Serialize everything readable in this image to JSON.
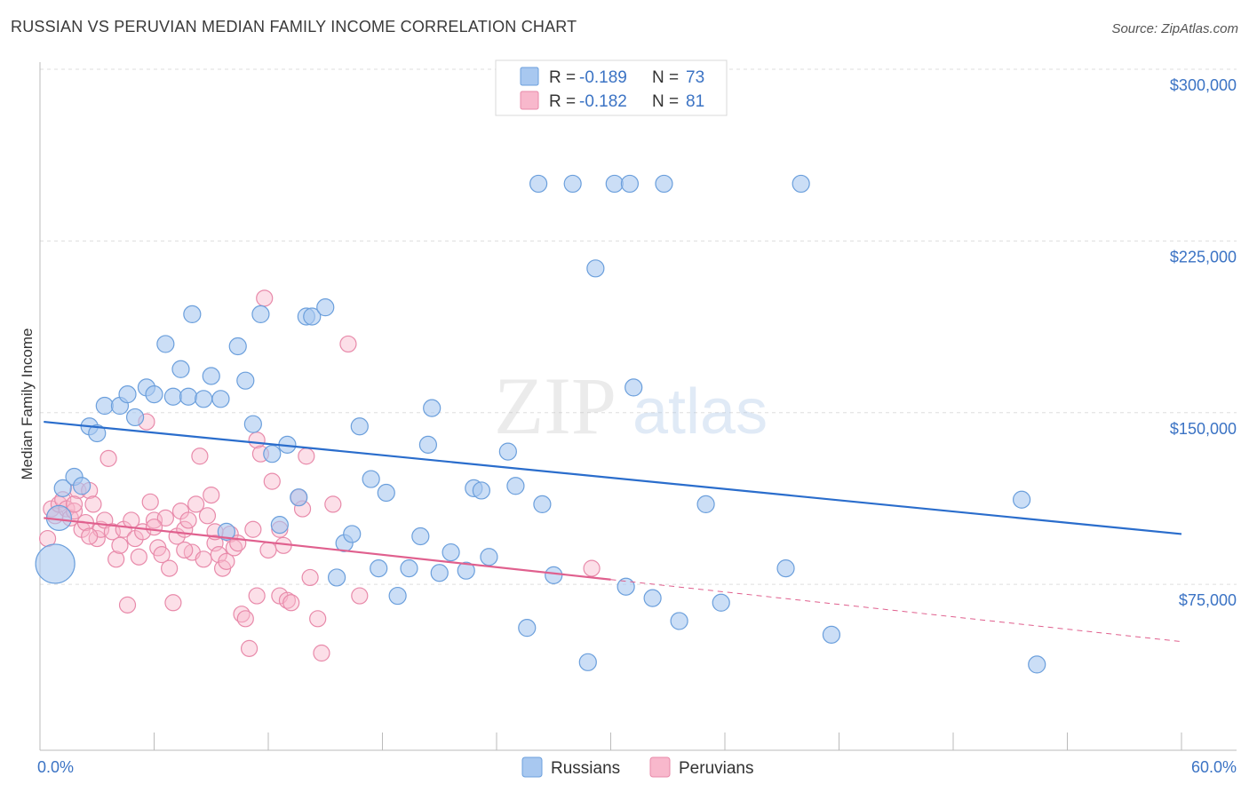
{
  "title": "RUSSIAN VS PERUVIAN MEDIAN FAMILY INCOME CORRELATION CHART",
  "source": "Source: ZipAtlas.com",
  "watermark": {
    "zip": "ZIP",
    "atlas": "atlas"
  },
  "colors": {
    "russians_fill": "#a8c8f0",
    "russians_stroke": "#6b9fdc",
    "russians_line": "#2a6dcc",
    "peruvians_fill": "#f8b8cc",
    "peruvians_stroke": "#e88aaa",
    "peruvians_line": "#e0608e",
    "accent_text": "#3b73c4",
    "grid": "#dddddd"
  },
  "legend": {
    "rows": [
      {
        "r_label": "R = ",
        "r_value": "-0.189",
        "n_label": "N = ",
        "n_value": "73"
      },
      {
        "r_label": "R = ",
        "r_value": "-0.182",
        "n_label": "N = ",
        "n_value": "81"
      }
    ]
  },
  "chart_data": {
    "type": "scatter",
    "xlabel": "",
    "ylabel": "Median Family Income",
    "xlim": [
      0,
      60
    ],
    "ylim": [
      10000,
      315000
    ],
    "x_tick_labels": [
      "0.0%",
      "60.0%"
    ],
    "y_ticks": [
      75000,
      150000,
      225000,
      300000
    ],
    "y_tick_labels": [
      "$75,000",
      "$150,000",
      "$225,000",
      "$300,000"
    ],
    "grid": true,
    "legend_position": "top-center",
    "series": [
      {
        "name": "Russians",
        "trend": {
          "x0": 0.2,
          "y0": 146000,
          "x1": 60,
          "y1": 97000,
          "dashed_after": null
        },
        "points": [
          [
            1.2,
            117000
          ],
          [
            1.8,
            122000
          ],
          [
            2.2,
            118000
          ],
          [
            2.6,
            144000
          ],
          [
            3.0,
            141000
          ],
          [
            3.4,
            153000
          ],
          [
            4.2,
            153000
          ],
          [
            4.6,
            158000
          ],
          [
            5.0,
            148000
          ],
          [
            5.6,
            161000
          ],
          [
            6.0,
            158000
          ],
          [
            6.6,
            180000
          ],
          [
            7.0,
            157000
          ],
          [
            7.4,
            169000
          ],
          [
            7.8,
            157000
          ],
          [
            8.0,
            193000
          ],
          [
            8.6,
            156000
          ],
          [
            9.0,
            166000
          ],
          [
            9.5,
            156000
          ],
          [
            9.8,
            98000
          ],
          [
            10.4,
            179000
          ],
          [
            10.8,
            164000
          ],
          [
            11.2,
            145000
          ],
          [
            11.6,
            193000
          ],
          [
            12.2,
            132000
          ],
          [
            12.6,
            101000
          ],
          [
            13.0,
            136000
          ],
          [
            13.6,
            113000
          ],
          [
            14.0,
            192000
          ],
          [
            14.3,
            192000
          ],
          [
            15.0,
            196000
          ],
          [
            15.6,
            78000
          ],
          [
            16.0,
            93000
          ],
          [
            16.4,
            97000
          ],
          [
            16.8,
            144000
          ],
          [
            17.4,
            121000
          ],
          [
            17.8,
            82000
          ],
          [
            18.2,
            115000
          ],
          [
            18.8,
            70000
          ],
          [
            19.4,
            82000
          ],
          [
            20.0,
            96000
          ],
          [
            20.4,
            136000
          ],
          [
            20.6,
            152000
          ],
          [
            21.0,
            80000
          ],
          [
            21.6,
            89000
          ],
          [
            22.4,
            81000
          ],
          [
            22.8,
            117000
          ],
          [
            23.2,
            116000
          ],
          [
            23.6,
            87000
          ],
          [
            24.6,
            133000
          ],
          [
            25.0,
            118000
          ],
          [
            25.6,
            56000
          ],
          [
            26.4,
            110000
          ],
          [
            27.0,
            79000
          ],
          [
            26.2,
            250000
          ],
          [
            28.0,
            250000
          ],
          [
            28.8,
            41000
          ],
          [
            29.2,
            213000
          ],
          [
            30.2,
            250000
          ],
          [
            31.0,
            250000
          ],
          [
            31.2,
            161000
          ],
          [
            30.8,
            74000
          ],
          [
            32.2,
            69000
          ],
          [
            32.8,
            250000
          ],
          [
            33.6,
            59000
          ],
          [
            35.0,
            110000
          ],
          [
            35.8,
            67000
          ],
          [
            39.2,
            82000
          ],
          [
            40.0,
            250000
          ],
          [
            41.6,
            53000
          ],
          [
            51.6,
            112000
          ],
          [
            52.4,
            40000
          ],
          [
            0.8,
            84000
          ]
        ],
        "radii": {
          "0.8": 24,
          "default": 10
        }
      },
      {
        "name": "Peruvians",
        "trend": {
          "x0": 0.2,
          "y0": 104000,
          "x1": 60,
          "y1": 50000,
          "solid_until": 30
        },
        "points": [
          [
            0.4,
            95000
          ],
          [
            0.6,
            108000
          ],
          [
            0.8,
            105000
          ],
          [
            1.0,
            110000
          ],
          [
            1.2,
            112000
          ],
          [
            1.4,
            108000
          ],
          [
            1.6,
            104000
          ],
          [
            1.8,
            107000
          ],
          [
            2.0,
            116000
          ],
          [
            2.2,
            99000
          ],
          [
            2.4,
            102000
          ],
          [
            2.6,
            116000
          ],
          [
            2.8,
            110000
          ],
          [
            3.0,
            95000
          ],
          [
            3.2,
            99000
          ],
          [
            3.4,
            103000
          ],
          [
            3.6,
            130000
          ],
          [
            3.8,
            98000
          ],
          [
            4.0,
            86000
          ],
          [
            4.2,
            92000
          ],
          [
            4.4,
            99000
          ],
          [
            4.6,
            66000
          ],
          [
            4.8,
            103000
          ],
          [
            5.0,
            95000
          ],
          [
            5.2,
            87000
          ],
          [
            5.4,
            98000
          ],
          [
            5.6,
            146000
          ],
          [
            5.8,
            111000
          ],
          [
            6.0,
            103000
          ],
          [
            6.2,
            91000
          ],
          [
            6.4,
            88000
          ],
          [
            6.6,
            104000
          ],
          [
            6.8,
            82000
          ],
          [
            7.0,
            67000
          ],
          [
            7.2,
            96000
          ],
          [
            7.4,
            107000
          ],
          [
            7.6,
            99000
          ],
          [
            7.8,
            103000
          ],
          [
            8.0,
            89000
          ],
          [
            8.2,
            110000
          ],
          [
            8.4,
            131000
          ],
          [
            8.6,
            86000
          ],
          [
            8.8,
            105000
          ],
          [
            9.0,
            114000
          ],
          [
            9.2,
            93000
          ],
          [
            9.4,
            88000
          ],
          [
            9.6,
            82000
          ],
          [
            9.8,
            85000
          ],
          [
            10.0,
            97000
          ],
          [
            10.2,
            91000
          ],
          [
            10.4,
            93000
          ],
          [
            10.6,
            62000
          ],
          [
            10.8,
            60000
          ],
          [
            11.0,
            47000
          ],
          [
            11.2,
            99000
          ],
          [
            11.4,
            138000
          ],
          [
            11.6,
            132000
          ],
          [
            11.8,
            200000
          ],
          [
            12.0,
            90000
          ],
          [
            12.2,
            120000
          ],
          [
            12.6,
            70000
          ],
          [
            12.8,
            92000
          ],
          [
            13.0,
            68000
          ],
          [
            13.2,
            67000
          ],
          [
            13.6,
            113000
          ],
          [
            13.8,
            108000
          ],
          [
            14.2,
            78000
          ],
          [
            14.6,
            60000
          ],
          [
            14.8,
            45000
          ],
          [
            15.4,
            110000
          ],
          [
            16.2,
            180000
          ],
          [
            16.8,
            70000
          ],
          [
            29.0,
            82000
          ],
          [
            7.6,
            90000
          ],
          [
            9.2,
            98000
          ],
          [
            12.6,
            99000
          ],
          [
            14.0,
            131000
          ],
          [
            11.4,
            70000
          ],
          [
            6.0,
            100000
          ],
          [
            2.6,
            96000
          ],
          [
            1.8,
            110000
          ]
        ]
      }
    ],
    "bottom_legend": [
      "Russians",
      "Peruvians"
    ]
  }
}
